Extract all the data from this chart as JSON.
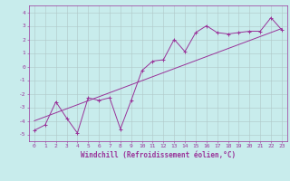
{
  "xlabel": "Windchill (Refroidissement éolien,°C)",
  "ylabel": "",
  "bg_color": "#c8ecec",
  "line_color": "#993399",
  "grid_color": "#b0c8c8",
  "xlim": [
    -0.5,
    23.5
  ],
  "ylim": [
    -5.5,
    4.5
  ],
  "xticks": [
    0,
    1,
    2,
    3,
    4,
    5,
    6,
    7,
    8,
    9,
    10,
    11,
    12,
    13,
    14,
    15,
    16,
    17,
    18,
    19,
    20,
    21,
    22,
    23
  ],
  "yticks": [
    -5,
    -4,
    -3,
    -2,
    -1,
    0,
    1,
    2,
    3,
    4
  ],
  "scatter_x": [
    0,
    1,
    2,
    3,
    4,
    5,
    6,
    7,
    8,
    9,
    10,
    11,
    12,
    13,
    14,
    15,
    16,
    17,
    18,
    19,
    20,
    21,
    22,
    23
  ],
  "scatter_y": [
    -4.7,
    -4.3,
    -2.6,
    -3.8,
    -4.9,
    -2.3,
    -2.5,
    -2.3,
    -4.6,
    -2.5,
    -0.3,
    0.4,
    0.5,
    2.0,
    1.1,
    2.5,
    3.0,
    2.5,
    2.4,
    2.5,
    2.6,
    2.6,
    3.6,
    2.7
  ],
  "trend_x": [
    0,
    23
  ],
  "trend_y": [
    -4.0,
    2.8
  ],
  "figsize": [
    3.2,
    2.0
  ],
  "dpi": 100,
  "label_fontsize": 5.5,
  "tick_fontsize": 4.5
}
